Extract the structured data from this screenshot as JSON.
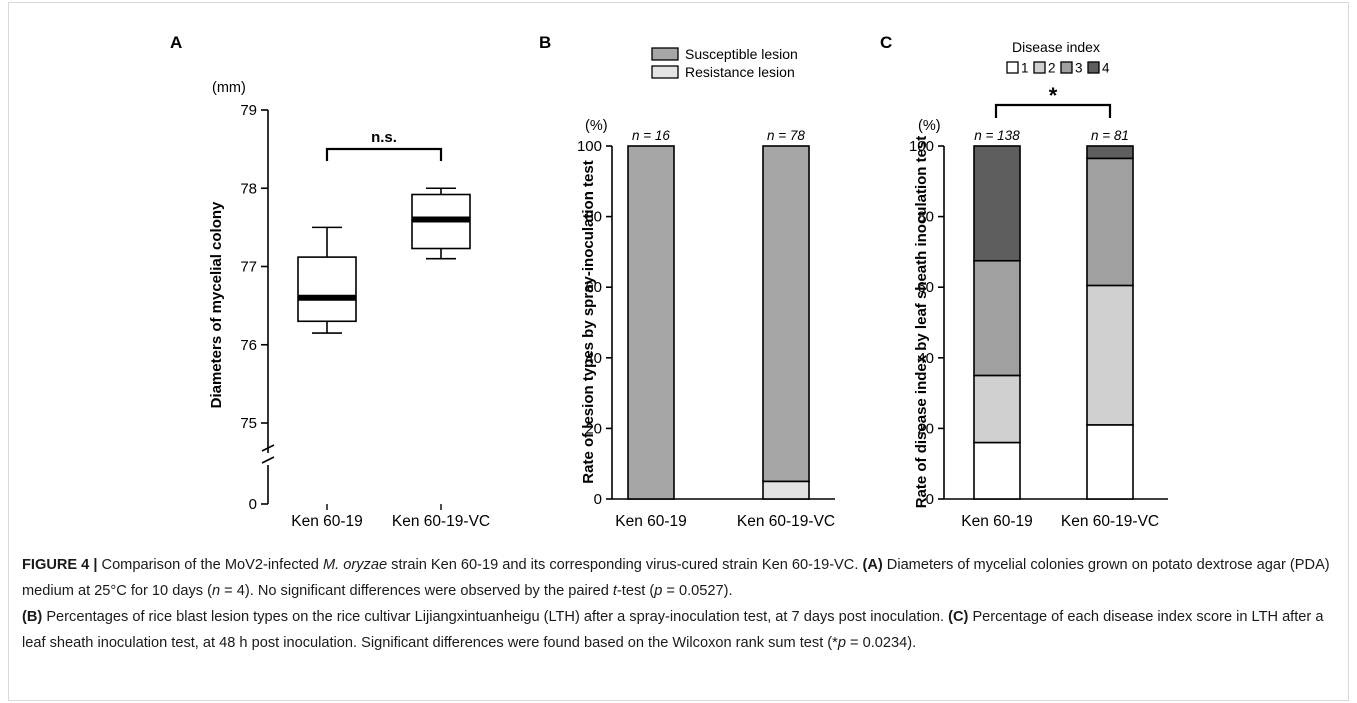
{
  "chart_data": [
    {
      "type": "box",
      "panel": "A",
      "unit_label": "(mm)",
      "ylabel": "Diameters of mycelial colony",
      "ylim": [
        75,
        79
      ],
      "yticks": [
        0,
        75,
        76,
        77,
        78,
        79
      ],
      "axis_break": true,
      "categories": [
        "Ken 60-19",
        "Ken 60-19-VC"
      ],
      "boxes": [
        {
          "min": 76.15,
          "q1": 76.3,
          "median": 76.6,
          "q3": 77.12,
          "max": 77.5
        },
        {
          "min": 77.1,
          "q1": 77.23,
          "median": 77.6,
          "q3": 77.92,
          "max": 78.0
        }
      ],
      "annotation": "n.s."
    },
    {
      "type": "bar",
      "stacked": true,
      "panel": "B",
      "unit_label": "(%)",
      "ylabel": "Rate of lesion types by spray-inoculation test",
      "ylim": [
        0,
        100
      ],
      "yticks": [
        0,
        20,
        40,
        60,
        80,
        100
      ],
      "categories": [
        "Ken 60-19",
        "Ken 60-19-VC"
      ],
      "n_labels": [
        "n = 16",
        "n = 78"
      ],
      "series": [
        {
          "name": "Resistance lesion",
          "color": "#e3e3e3",
          "values": [
            0,
            5
          ]
        },
        {
          "name": "Susceptible lesion",
          "color": "#a6a6a6",
          "values": [
            100,
            95
          ]
        }
      ],
      "legend_order": [
        "Susceptible lesion",
        "Resistance lesion"
      ],
      "legend": "top-right"
    },
    {
      "type": "bar",
      "stacked": true,
      "panel": "C",
      "unit_label": "(%)",
      "ylabel": "Rate of disease index by leaf sheath inoculation test",
      "ylim": [
        0,
        100
      ],
      "yticks": [
        0,
        20,
        40,
        60,
        80,
        100
      ],
      "categories": [
        "Ken 60-19",
        "Ken 60-19-VC"
      ],
      "n_labels": [
        "n = 138",
        "n = 81"
      ],
      "legend_title": "Disease index",
      "series": [
        {
          "name": "1",
          "color": "#ffffff",
          "values": [
            16,
            21
          ]
        },
        {
          "name": "2",
          "color": "#d0d0d0",
          "values": [
            19,
            39.5
          ]
        },
        {
          "name": "3",
          "color": "#a0a0a0",
          "values": [
            32.5,
            36
          ]
        },
        {
          "name": "4",
          "color": "#5e5e5e",
          "values": [
            32.5,
            3.5
          ]
        }
      ],
      "annotation": "*",
      "legend": "top"
    }
  ],
  "caption": {
    "figure_label": "FIGURE 4",
    "separator": "|",
    "intro_1": "Comparison of the MoV2-infected",
    "species": "M. oryzae",
    "intro_2": "strain Ken 60-19 and its corresponding virus-cured strain Ken 60-19-VC.",
    "label_a": "(A)",
    "text_a_1": "Diameters of mycelial colonies grown on potato dextrose agar (PDA) medium at 25°C for 10 days (",
    "n_var": "n",
    "text_a_2": "= 4). No significant differences were observed by the paired",
    "t_var": "t",
    "text_a_3": "-test (",
    "p_var_a": "p",
    "text_a_4": "= 0.0527).",
    "label_b": "(B)",
    "text_b": "Percentages of rice blast lesion types on the rice cultivar Lijiangxintuanheigu (LTH) after a spray-inoculation test, at 7 days post inoculation.",
    "label_c": "(C)",
    "text_c_1": "Percentage of each disease index score in LTH after a leaf sheath inoculation test, at 48 h post inoculation. Significant differences were found based on the Wilcoxon rank sum test (*",
    "p_var_c": "p",
    "text_c_2": "= 0.0234)."
  }
}
